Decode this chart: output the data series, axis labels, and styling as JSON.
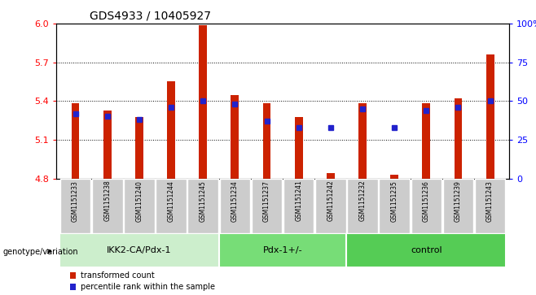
{
  "title": "GDS4933 / 10405927",
  "samples": [
    "GSM1151233",
    "GSM1151238",
    "GSM1151240",
    "GSM1151244",
    "GSM1151245",
    "GSM1151234",
    "GSM1151237",
    "GSM1151241",
    "GSM1151242",
    "GSM1151232",
    "GSM1151235",
    "GSM1151236",
    "GSM1151239",
    "GSM1151243"
  ],
  "groups": [
    {
      "name": "IKK2-CA/Pdx-1",
      "count": 5,
      "color": "#cceecc"
    },
    {
      "name": "Pdx-1+/-",
      "count": 4,
      "color": "#77dd77"
    },
    {
      "name": "control",
      "count": 5,
      "color": "#55cc55"
    }
  ],
  "bar_values": [
    5.385,
    5.325,
    5.275,
    5.555,
    5.99,
    5.445,
    5.385,
    5.275,
    4.84,
    5.385,
    4.83,
    5.385,
    5.42,
    5.76
  ],
  "percentile_values": [
    42,
    40,
    38,
    46,
    50,
    48,
    37,
    33,
    33,
    45,
    33,
    44,
    46,
    50
  ],
  "ylim_left": [
    4.8,
    6.0
  ],
  "yticks_left": [
    4.8,
    5.1,
    5.4,
    5.7,
    6.0
  ],
  "ylim_right": [
    0,
    100
  ],
  "yticks_right": [
    0,
    25,
    50,
    75,
    100
  ],
  "bar_color": "#cc2200",
  "dot_color": "#2222cc",
  "bar_width": 0.25,
  "legend_label_red": "transformed count",
  "legend_label_blue": "percentile rank within the sample",
  "genotype_label": "genotype/variation"
}
